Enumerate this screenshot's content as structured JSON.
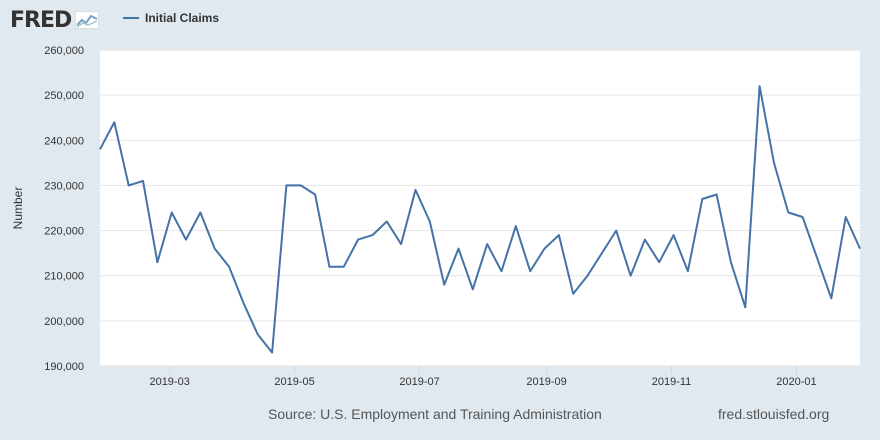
{
  "header": {
    "logo_text": "FRED",
    "logo_icon": "line-chart-icon",
    "legend_label": "Initial Claims"
  },
  "footer": {
    "source": "Source: U.S. Employment and Training Administration",
    "site": "fred.stlouisfed.org"
  },
  "colors": {
    "background": "#e1e9f0",
    "plot_background": "#ffffff",
    "series": "#4572a7",
    "grid": "#e6e6e6"
  },
  "chart_data": {
    "type": "line",
    "ylabel": "Number",
    "ylim": [
      190000,
      260000
    ],
    "yticks": [
      190000,
      200000,
      210000,
      220000,
      230000,
      240000,
      250000,
      260000
    ],
    "ytick_labels": [
      "190,000",
      "200,000",
      "210,000",
      "220,000",
      "230,000",
      "240,000",
      "250,000",
      "260,000"
    ],
    "xlim": [
      "2019-01-26",
      "2020-02-01"
    ],
    "xticks": [
      "2019-03-01",
      "2019-05-01",
      "2019-07-01",
      "2019-09-01",
      "2019-11-01",
      "2020-01-01"
    ],
    "xtick_labels": [
      "2019-03",
      "2019-05",
      "2019-07",
      "2019-09",
      "2019-11",
      "2020-01"
    ],
    "grid": true,
    "legend_position": "top-left",
    "series": [
      {
        "name": "Initial Claims",
        "color": "#4572a7",
        "x": [
          "2019-01-26",
          "2019-02-02",
          "2019-02-09",
          "2019-02-16",
          "2019-02-23",
          "2019-03-02",
          "2019-03-09",
          "2019-03-16",
          "2019-03-23",
          "2019-03-30",
          "2019-04-06",
          "2019-04-13",
          "2019-04-20",
          "2019-04-27",
          "2019-05-04",
          "2019-05-11",
          "2019-05-18",
          "2019-05-25",
          "2019-06-01",
          "2019-06-08",
          "2019-06-15",
          "2019-06-22",
          "2019-06-29",
          "2019-07-06",
          "2019-07-13",
          "2019-07-20",
          "2019-07-27",
          "2019-08-03",
          "2019-08-10",
          "2019-08-17",
          "2019-08-24",
          "2019-08-31",
          "2019-09-07",
          "2019-09-14",
          "2019-09-21",
          "2019-09-28",
          "2019-10-05",
          "2019-10-12",
          "2019-10-19",
          "2019-10-26",
          "2019-11-02",
          "2019-11-09",
          "2019-11-16",
          "2019-11-23",
          "2019-11-30",
          "2019-12-07",
          "2019-12-14",
          "2019-12-21",
          "2019-12-28",
          "2020-01-04",
          "2020-01-11",
          "2020-01-18",
          "2020-01-25",
          "2020-02-01"
        ],
        "values": [
          238000,
          244000,
          230000,
          231000,
          213000,
          224000,
          218000,
          224000,
          216000,
          212000,
          204000,
          197000,
          193000,
          230000,
          230000,
          228000,
          212000,
          212000,
          218000,
          219000,
          222000,
          217000,
          229000,
          222000,
          208000,
          216000,
          207000,
          217000,
          211000,
          221000,
          211000,
          216000,
          219000,
          206000,
          210000,
          215000,
          220000,
          210000,
          218000,
          213000,
          219000,
          211000,
          227000,
          228000,
          213000,
          203000,
          252000,
          235000,
          224000,
          223000,
          214000,
          205000,
          223000,
          216000
        ]
      }
    ]
  }
}
